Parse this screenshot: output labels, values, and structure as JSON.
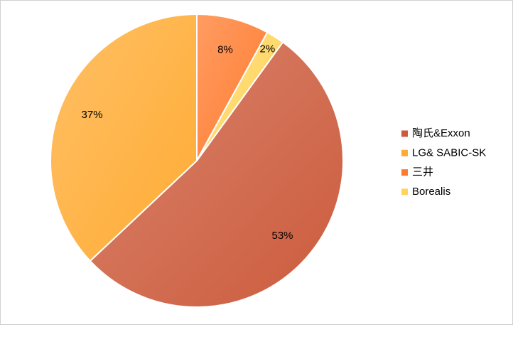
{
  "chart_data": {
    "type": "pie",
    "categories": [
      "陶氏&Exxon",
      "LG& SABIC-SK",
      "三井",
      "Borealis"
    ],
    "values": [
      53,
      37,
      8,
      2
    ],
    "value_labels": [
      "53%",
      "37%",
      "8%",
      "2%"
    ],
    "colors": [
      "#cc5b3c",
      "#ffab33",
      "#ff7b2e",
      "#ffd45a"
    ],
    "legend": "right"
  }
}
